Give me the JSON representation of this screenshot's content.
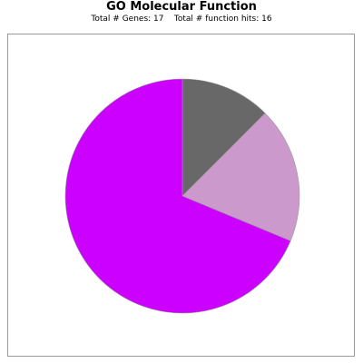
{
  "chart_data": {
    "type": "pie",
    "title": "GO Molecular Function",
    "subtitle": "Total # Genes: 17    Total # function hits: 16",
    "slices": [
      {
        "value": 2,
        "color": "#686868"
      },
      {
        "value": 3,
        "color": "#cc99cc"
      },
      {
        "value": 11,
        "color": "#cc00ff"
      }
    ],
    "start_angle_deg": 0,
    "direction": "clockwise",
    "legend": "none"
  }
}
